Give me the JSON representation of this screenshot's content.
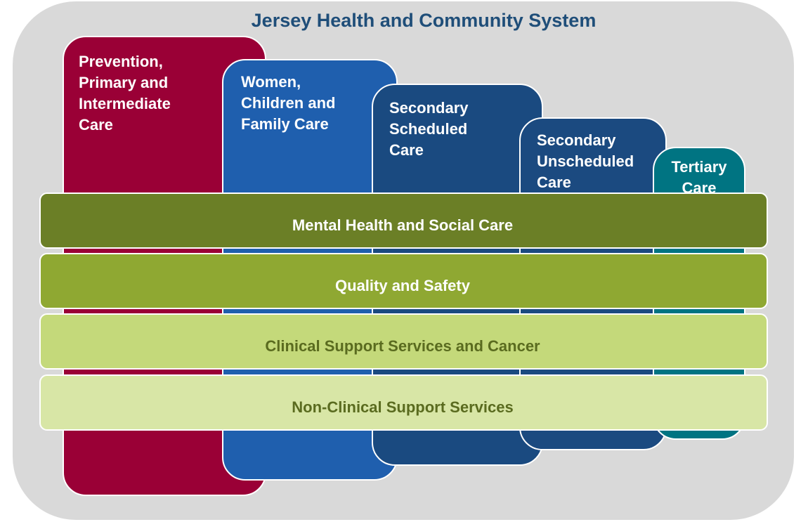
{
  "title": "Jersey Health and Community System",
  "columns": [
    {
      "lines": [
        "Prevention,",
        "Primary and",
        "Intermediate",
        "Care"
      ]
    },
    {
      "lines": [
        "Women,",
        "Children and",
        "Family Care"
      ]
    },
    {
      "lines": [
        "Secondary",
        "Scheduled",
        "Care"
      ]
    },
    {
      "lines": [
        "Secondary",
        "Unscheduled",
        "Care"
      ]
    },
    {
      "lines": [
        "Tertiary",
        "Care"
      ]
    }
  ],
  "bands": [
    {
      "label": "Mental Health and Social Care"
    },
    {
      "label": "Quality and Safety"
    },
    {
      "label": "Clinical Support Services and Cancer"
    },
    {
      "label": "Non-Clinical Support Services"
    }
  ]
}
